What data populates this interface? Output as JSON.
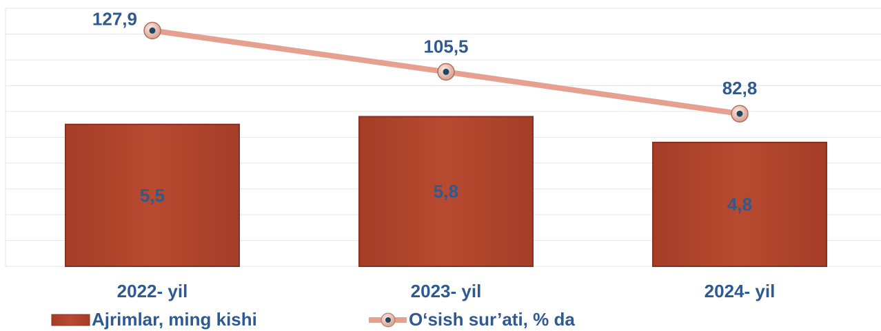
{
  "chart_data": {
    "type": "bar_line",
    "categories": [
      "2022- yil",
      "2023- yil",
      "2024- yil"
    ],
    "series": [
      {
        "name": "Ajrimlar, ming kishi",
        "type": "bar",
        "color": "#b84a30",
        "values": [
          5.5,
          5.8,
          4.8
        ],
        "value_labels": [
          "5,5",
          "5,8",
          "4,8"
        ]
      },
      {
        "name": "O‘sish sur’ati, % da",
        "type": "line",
        "axis": "y2",
        "color": "#e6a090",
        "values": [
          127.9,
          105.5,
          82.8
        ],
        "value_labels": [
          "127,9",
          "105,5",
          "82,8"
        ]
      }
    ],
    "ylim": [
      0,
      10
    ],
    "yticks": [
      0,
      1,
      2,
      3,
      4,
      5,
      6,
      7,
      8,
      9,
      10
    ],
    "y2lim": [
      0,
      140
    ],
    "grid": true
  }
}
